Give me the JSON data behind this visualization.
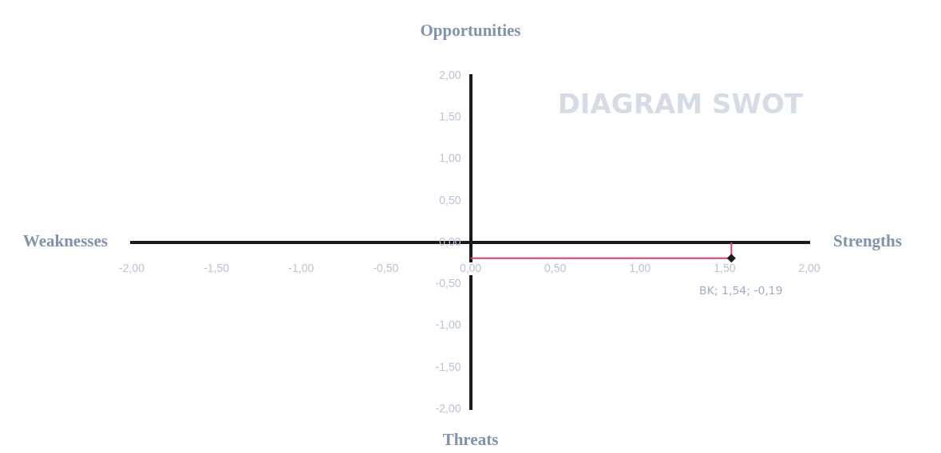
{
  "chart_data": {
    "type": "scatter",
    "title": "DIAGRAM SWOT",
    "annotations": [
      "Opportunities",
      "Strengths",
      "Threats",
      "Weaknesses"
    ],
    "x": [
      1.54
    ],
    "series": [
      {
        "color": "#1a1a1a",
        "values": [
          -0.19
        ],
        "errors": [
          [
            -0.19,
            0
          ]
        ],
        "xerrors": [
          [
            0,
            1.54
          ]
        ],
        "value_labels": [
          "BK; 1,54; -0,19"
        ]
      }
    ],
    "xlim": [
      -2,
      2
    ],
    "ylim": [
      -2,
      2
    ],
    "xticks": [
      {
        "value": -2,
        "label": "-2,00"
      },
      {
        "value": -1.5,
        "label": "-1,50"
      },
      {
        "value": -1,
        "label": "-1,00"
      },
      {
        "value": -0.5,
        "label": "-0,50"
      },
      {
        "value": 0,
        "label": "0,00"
      },
      {
        "value": 0.5,
        "label": "0,50"
      },
      {
        "value": 1,
        "label": "1,00"
      },
      {
        "value": 1.5,
        "label": "1,50"
      },
      {
        "value": 2,
        "label": "2,00"
      }
    ],
    "yticks": [
      {
        "value": -2,
        "label": "-2,00"
      },
      {
        "value": -1.5,
        "label": "-1,50"
      },
      {
        "value": -1,
        "label": "-1,00"
      },
      {
        "value": -0.5,
        "label": "-0,50"
      },
      {
        "value": 0,
        "label": "0,00"
      },
      {
        "value": 0.5,
        "label": "0,50"
      },
      {
        "value": 1,
        "label": "1,00"
      },
      {
        "value": 1.5,
        "label": "1,50"
      },
      {
        "value": 2,
        "label": "2,00"
      }
    ],
    "grid": false,
    "legend": false,
    "marker": "diamond"
  }
}
